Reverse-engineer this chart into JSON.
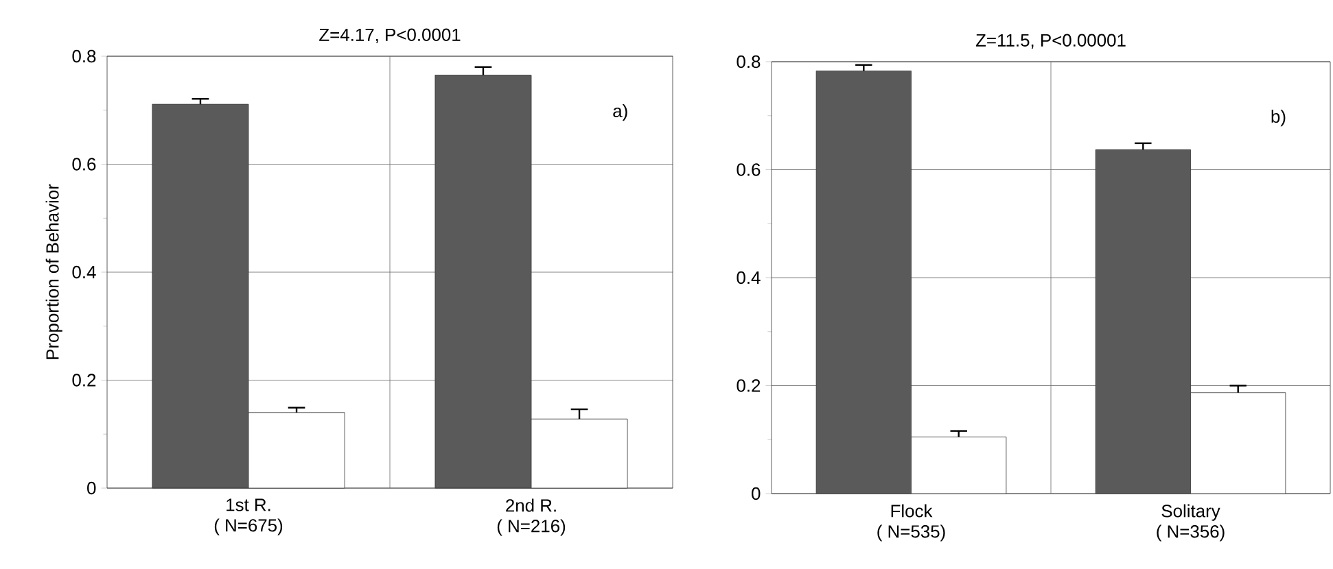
{
  "chart_data": [
    {
      "type": "bar",
      "title": "Z=4.17, P<0.0001",
      "ylabel": "Proportion of Behavior",
      "categories": [
        "1st R.\n( N=675)",
        "2nd R.\n( N=216)"
      ],
      "series": [
        {
          "color": "#5a5a5a",
          "values": [
            0.711,
            0.765
          ],
          "errors": [
            [
              0.711,
              0.721
            ],
            [
              0.765,
              0.78
            ]
          ]
        },
        {
          "color": "#ffffff",
          "values": [
            0.14,
            0.128
          ],
          "errors": [
            [
              0.14,
              0.149
            ],
            [
              0.128,
              0.146
            ]
          ]
        }
      ],
      "ylim": [
        0,
        0.8
      ],
      "yticks": [
        0,
        0.2,
        0.4,
        0.6,
        0.8
      ],
      "grid": true,
      "annotations": [
        "a)"
      ]
    },
    {
      "type": "bar",
      "title": "Z=11.5, P<0.00001",
      "categories": [
        "Flock\n( N=535)",
        "Solitary\n( N=356)"
      ],
      "series": [
        {
          "color": "#5a5a5a",
          "values": [
            0.783,
            0.637
          ],
          "errors": [
            [
              0.783,
              0.794
            ],
            [
              0.637,
              0.649
            ]
          ]
        },
        {
          "color": "#ffffff",
          "values": [
            0.105,
            0.187
          ],
          "errors": [
            [
              0.105,
              0.116
            ],
            [
              0.187,
              0.2
            ]
          ]
        }
      ],
      "ylim": [
        0,
        0.8
      ],
      "yticks": [
        0,
        0.2,
        0.4,
        0.6,
        0.8
      ],
      "grid": true,
      "annotations": [
        "b)"
      ]
    }
  ]
}
